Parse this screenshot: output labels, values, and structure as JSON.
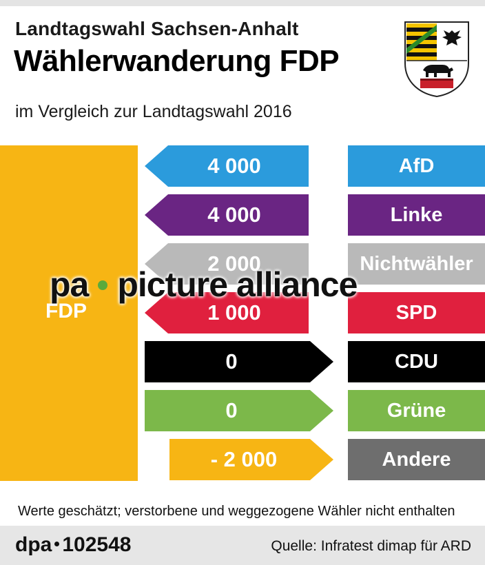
{
  "header": {
    "supertitle": "Landtagswahl Sachsen-Anhalt",
    "title": "Wählerwanderung FDP",
    "subtitle": "im Vergleich zur Landtagswahl 2016"
  },
  "main_party": "FDP",
  "watermark": {
    "part1": "pa",
    "part2": "picture alliance"
  },
  "colors": {
    "FDP": "#f7b514",
    "AfD": "#2b9bdc",
    "Linke": "#6a2583",
    "Nichtwähler": "#b9b9b9",
    "SPD": "#e0203e",
    "CDU": "#000000",
    "Grüne": "#7cb84a",
    "Andere": "#6e6e6e"
  },
  "chart_data": {
    "type": "bar",
    "title": "Wählerwanderung FDP",
    "categories": [
      "AfD",
      "Linke",
      "Nichtwähler",
      "SPD",
      "CDU",
      "Grüne",
      "Andere"
    ],
    "values": [
      4000,
      4000,
      2000,
      1000,
      0,
      0,
      -2000
    ],
    "value_labels": [
      "4 000",
      "4 000",
      "2 000",
      "1 000",
      "0",
      "0",
      "- 2 000"
    ],
    "directions": [
      "out",
      "out",
      "out",
      "out",
      "in",
      "in",
      "in"
    ]
  },
  "footnote": "Werte geschätzt; verstorbene und weggezogene Wähler nicht enthalten",
  "footer": {
    "agency": "dpa",
    "id": "102548",
    "source": "Quelle: Infratest dimap für ARD"
  }
}
